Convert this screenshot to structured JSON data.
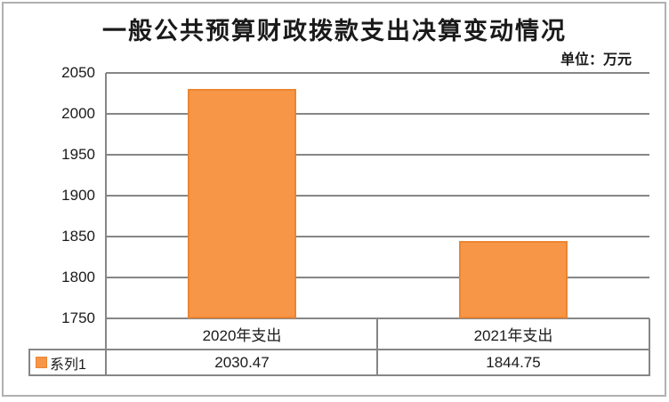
{
  "chart_data": {
    "type": "bar",
    "title": "一般公共预算财政拨款支出决算变动情况",
    "unit_label": "单位：万元",
    "categories": [
      "2020年支出",
      "2021年支出"
    ],
    "series": [
      {
        "name": "系列1",
        "values": [
          2030.47,
          1844.75
        ]
      }
    ],
    "value_labels": [
      "2030.47",
      "1844.75"
    ],
    "ylim": [
      1750,
      2050
    ],
    "ytick_step": 50,
    "yticks": [
      2050,
      2000,
      1950,
      1900,
      1850,
      1800,
      1750
    ],
    "grid": true,
    "legend_position": "bottom-left-table",
    "colors": {
      "bar_fill": "#F79646",
      "bar_border": "#EB8532",
      "grid": "#868686",
      "frame": "#B0B0B0",
      "text": "#1A1A1A"
    }
  }
}
